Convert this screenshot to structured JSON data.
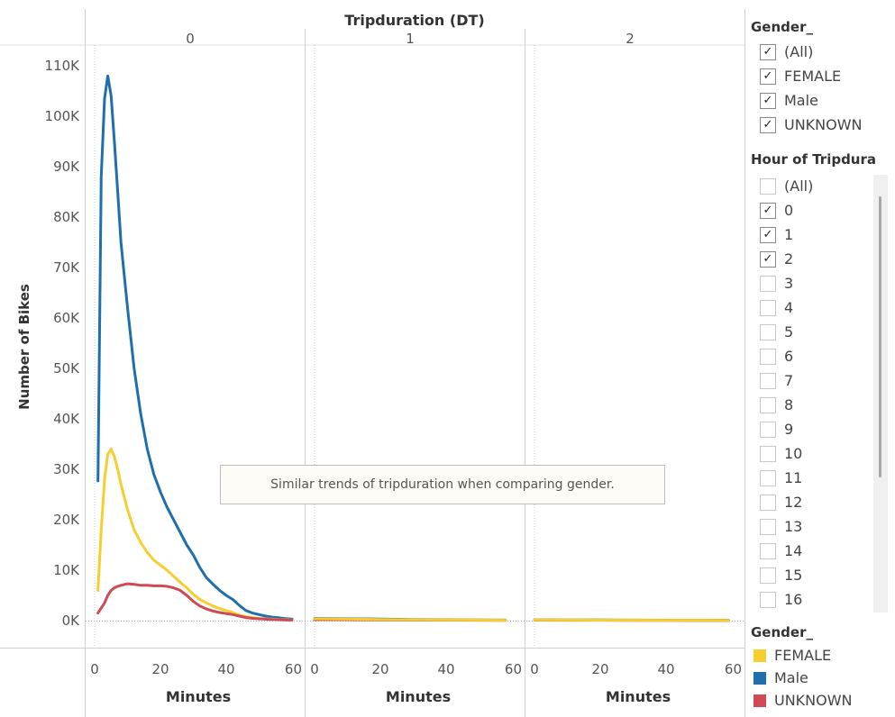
{
  "chart_data": {
    "type": "line",
    "header_title": "Tripduration (DT)",
    "ylabel": "Number of Bikes",
    "xlabel": "Minutes",
    "ylim": [
      0,
      115000
    ],
    "yticks": [
      0,
      10000,
      20000,
      30000,
      40000,
      50000,
      60000,
      70000,
      80000,
      90000,
      100000,
      110000
    ],
    "ytick_labels": [
      "0K",
      "10K",
      "20K",
      "30K",
      "40K",
      "50K",
      "60K",
      "70K",
      "80K",
      "90K",
      "100K",
      "110K"
    ],
    "xlim": [
      0,
      60
    ],
    "xticks": [
      0,
      20,
      40
    ],
    "xtick_labels": [
      "0",
      "20",
      "40"
    ],
    "xtick_end_label": "60",
    "panels": [
      {
        "label": "0",
        "series": [
          {
            "name": "Male",
            "color": "#1f6fad",
            "x": [
              1,
              2,
              3,
              4,
              5,
              6,
              7,
              8,
              10,
              12,
              14,
              16,
              18,
              20,
              22,
              24,
              26,
              28,
              30,
              32,
              34,
              36,
              38,
              40,
              42,
              44,
              46,
              48,
              50,
              52,
              54,
              56,
              58,
              60
            ],
            "y": [
              27700,
              88000,
              103500,
              108000,
              104000,
              95000,
              85000,
              75000,
              62000,
              50000,
              41000,
              34000,
              29000,
              25500,
              22500,
              20000,
              17500,
              15000,
              13000,
              10500,
              8500,
              7200,
              6000,
              5000,
              4200,
              3000,
              2000,
              1500,
              1200,
              900,
              700,
              550,
              400,
              300
            ]
          },
          {
            "name": "FEMALE",
            "color": "#f5cf2f",
            "x": [
              1,
              2,
              3,
              4,
              5,
              6,
              7,
              8,
              10,
              12,
              14,
              16,
              18,
              20,
              22,
              24,
              26,
              28,
              30,
              32,
              34,
              36,
              38,
              40,
              42,
              44,
              46,
              48,
              50,
              52,
              54,
              56,
              58,
              60
            ],
            "y": [
              6000,
              18000,
              28000,
              33000,
              34000,
              32500,
              30000,
              27000,
              22000,
              18000,
              15500,
              13500,
              12000,
              11000,
              10000,
              8800,
              7600,
              6500,
              5200,
              4200,
              3500,
              2900,
              2400,
              2000,
              1600,
              1100,
              800,
              600,
              450,
              350,
              280,
              220,
              170,
              130
            ]
          },
          {
            "name": "UNKNOWN",
            "color": "#cf4a54",
            "x": [
              1,
              2,
              3,
              4,
              5,
              6,
              7,
              8,
              10,
              12,
              14,
              16,
              18,
              20,
              22,
              24,
              26,
              28,
              30,
              32,
              34,
              36,
              38,
              40,
              42,
              44,
              46,
              48,
              50,
              52,
              54,
              56,
              58,
              60
            ],
            "y": [
              1500,
              2500,
              3500,
              5000,
              6000,
              6500,
              6800,
              7000,
              7300,
              7200,
              7000,
              7000,
              6900,
              6900,
              6800,
              6500,
              6000,
              5000,
              3800,
              2900,
              2300,
              1900,
              1600,
              1400,
              1200,
              900,
              600,
              450,
              350,
              280,
              220,
              170,
              130,
              100
            ]
          }
        ]
      },
      {
        "label": "1",
        "series": [
          {
            "name": "Male",
            "color": "#1f6fad",
            "x": [
              0,
              10,
              20,
              30,
              40,
              50,
              58
            ],
            "y": [
              450,
              380,
              300,
              230,
              180,
              130,
              100
            ]
          },
          {
            "name": "UNKNOWN",
            "color": "#cf4a54",
            "x": [
              0,
              10,
              20,
              30,
              40,
              50,
              58
            ],
            "y": [
              200,
              170,
              140,
              110,
              90,
              70,
              50
            ]
          },
          {
            "name": "FEMALE",
            "color": "#f5cf2f",
            "x": [
              0,
              10,
              20,
              30,
              40,
              50,
              58
            ],
            "y": [
              380,
              300,
              230,
              180,
              140,
              100,
              80
            ]
          }
        ]
      },
      {
        "label": "2",
        "series": [
          {
            "name": "Male",
            "color": "#1f6fad",
            "x": [
              0,
              10,
              20,
              30,
              40,
              50,
              59
            ],
            "y": [
              160,
              140,
              120,
              100,
              90,
              80,
              60
            ]
          },
          {
            "name": "UNKNOWN",
            "color": "#cf4a54",
            "x": [
              0,
              10,
              20,
              30,
              40,
              50,
              59
            ],
            "y": [
              90,
              80,
              70,
              60,
              50,
              40,
              30
            ]
          },
          {
            "name": "FEMALE",
            "color": "#f5cf2f",
            "x": [
              0,
              10,
              20,
              30,
              40,
              50,
              59
            ],
            "y": [
              130,
              110,
              95,
              85,
              75,
              65,
              50
            ]
          }
        ]
      }
    ],
    "legend": {
      "title": "Gender_",
      "items": [
        {
          "label": "FEMALE",
          "color": "#f5cf2f"
        },
        {
          "label": "Male",
          "color": "#1f6fad"
        },
        {
          "label": "UNKNOWN",
          "color": "#cf4a54"
        }
      ]
    }
  },
  "annotation": "Similar trends of tripduration when comparing gender.",
  "filters": {
    "gender": {
      "title": "Gender_",
      "items": [
        {
          "label": "(All)",
          "checked": true
        },
        {
          "label": "FEMALE",
          "checked": true
        },
        {
          "label": "Male",
          "checked": true
        },
        {
          "label": "UNKNOWN",
          "checked": true
        }
      ]
    },
    "hour": {
      "title": "Hour of Tripdura..",
      "items": [
        {
          "label": "(All)",
          "checked": false
        },
        {
          "label": "0",
          "checked": true
        },
        {
          "label": "1",
          "checked": true
        },
        {
          "label": "2",
          "checked": true
        },
        {
          "label": "3",
          "checked": false
        },
        {
          "label": "4",
          "checked": false
        },
        {
          "label": "5",
          "checked": false
        },
        {
          "label": "6",
          "checked": false
        },
        {
          "label": "7",
          "checked": false
        },
        {
          "label": "8",
          "checked": false
        },
        {
          "label": "9",
          "checked": false
        },
        {
          "label": "10",
          "checked": false
        },
        {
          "label": "11",
          "checked": false
        },
        {
          "label": "12",
          "checked": false
        },
        {
          "label": "13",
          "checked": false
        },
        {
          "label": "14",
          "checked": false
        },
        {
          "label": "15",
          "checked": false
        },
        {
          "label": "16",
          "checked": false
        }
      ]
    }
  }
}
